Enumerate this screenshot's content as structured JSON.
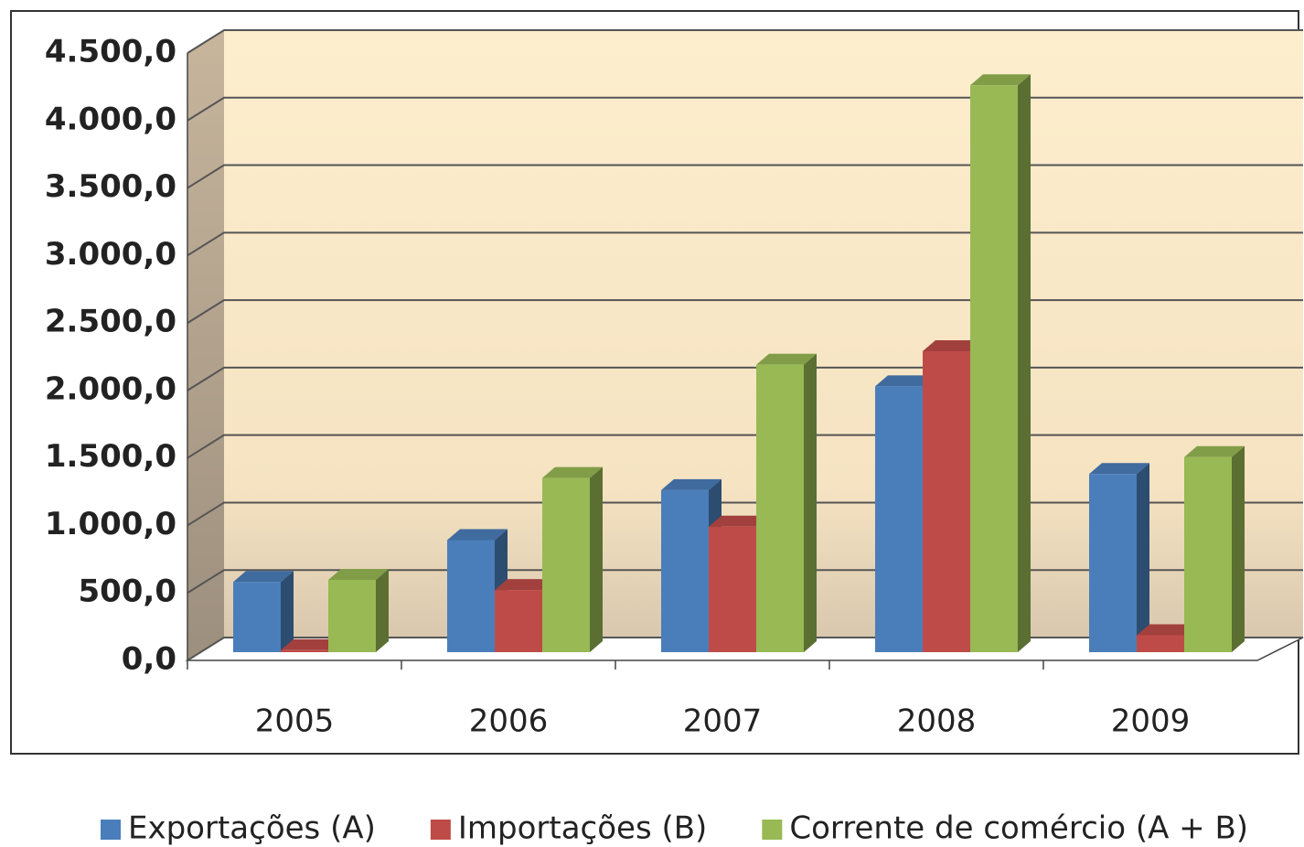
{
  "chart_data": {
    "type": "bar3d",
    "categories": [
      "2005",
      "2006",
      "2007",
      "2008",
      "2009"
    ],
    "series": [
      {
        "name": "Exportações (A)",
        "color": "#4a7ebb",
        "values": [
          520,
          830,
          1200,
          1970,
          1320
        ]
      },
      {
        "name": "Importações (B)",
        "color": "#be4b48",
        "values": [
          15,
          460,
          930,
          2230,
          125
        ]
      },
      {
        "name": "Corrente de comércio (A + B)",
        "color": "#98b954",
        "values": [
          535,
          1290,
          2130,
          4200,
          1445
        ]
      }
    ],
    "ylim": [
      0,
      4500
    ],
    "yticks": [
      {
        "value": 0,
        "label": "0,0"
      },
      {
        "value": 500,
        "label": "500,0"
      },
      {
        "value": 1000,
        "label": "1.000,0"
      },
      {
        "value": 1500,
        "label": "1.500,0"
      },
      {
        "value": 2000,
        "label": "2.000,0"
      },
      {
        "value": 2500,
        "label": "2.500,0"
      },
      {
        "value": 3000,
        "label": "3.000,0"
      },
      {
        "value": 3500,
        "label": "3.500,0"
      },
      {
        "value": 4000,
        "label": "4.000,0"
      },
      {
        "value": 4500,
        "label": "4.500,0"
      }
    ],
    "grid": true,
    "legend": "bottom"
  }
}
